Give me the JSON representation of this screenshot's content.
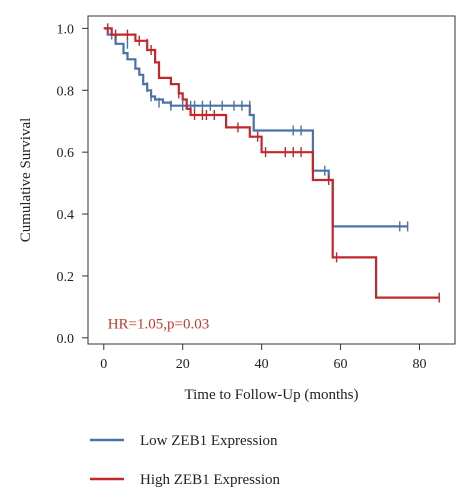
{
  "chart_data": {
    "type": "line",
    "subtype": "kaplan-meier step",
    "xlabel": "Time to Follow-Up (months)",
    "ylabel": "Cumulative Survival",
    "xlim": [
      -4,
      89
    ],
    "ylim": [
      -0.02,
      1.04
    ],
    "xticks": [
      0,
      20,
      40,
      60,
      80
    ],
    "yticks": [
      0.0,
      0.2,
      0.4,
      0.6,
      0.8,
      1.0
    ],
    "ytick_labels": [
      "0.0",
      "0.2",
      "0.4",
      "0.6",
      "0.8",
      "1.0"
    ],
    "grid": false,
    "legend_position": "below plot",
    "annotation": {
      "text": "HR=1.05,p=0.03",
      "x": 1,
      "y": 0.03,
      "color": "#c8382a"
    },
    "series": [
      {
        "name": "Low ZEB1 Expression",
        "color": "#4a72a8",
        "steps": [
          [
            0,
            1.0
          ],
          [
            1,
            0.98
          ],
          [
            3,
            0.95
          ],
          [
            5,
            0.92
          ],
          [
            6,
            0.9
          ],
          [
            8,
            0.87
          ],
          [
            9,
            0.85
          ],
          [
            10,
            0.82
          ],
          [
            11,
            0.8
          ],
          [
            12,
            0.78
          ],
          [
            13,
            0.77
          ],
          [
            15,
            0.76
          ],
          [
            17,
            0.75
          ],
          [
            37,
            0.72
          ],
          [
            38,
            0.67
          ],
          [
            53,
            0.54
          ],
          [
            57,
            0.51
          ],
          [
            58,
            0.36
          ],
          [
            77,
            0.36
          ]
        ],
        "censored": [
          [
            2,
            0.98
          ],
          [
            6,
            0.95
          ],
          [
            11,
            0.81
          ],
          [
            12,
            0.78
          ],
          [
            14,
            0.76
          ],
          [
            17,
            0.75
          ],
          [
            20,
            0.75
          ],
          [
            22,
            0.75
          ],
          [
            23,
            0.75
          ],
          [
            25,
            0.75
          ],
          [
            27,
            0.75
          ],
          [
            30,
            0.75
          ],
          [
            33,
            0.75
          ],
          [
            35,
            0.75
          ],
          [
            37,
            0.75
          ],
          [
            48,
            0.67
          ],
          [
            50,
            0.67
          ],
          [
            56,
            0.54
          ],
          [
            75,
            0.36
          ],
          [
            77,
            0.36
          ]
        ]
      },
      {
        "name": "High ZEB1 Expression",
        "color": "#c0282d",
        "steps": [
          [
            0,
            1.0
          ],
          [
            2,
            0.98
          ],
          [
            8,
            0.96
          ],
          [
            11,
            0.93
          ],
          [
            13,
            0.89
          ],
          [
            14,
            0.84
          ],
          [
            17,
            0.82
          ],
          [
            19,
            0.79
          ],
          [
            20,
            0.77
          ],
          [
            21,
            0.74
          ],
          [
            22,
            0.72
          ],
          [
            31,
            0.68
          ],
          [
            37,
            0.65
          ],
          [
            40,
            0.6
          ],
          [
            53,
            0.51
          ],
          [
            58,
            0.26
          ],
          [
            69,
            0.13
          ],
          [
            85,
            0.13
          ]
        ],
        "censored": [
          [
            1,
            1.0
          ],
          [
            3,
            0.98
          ],
          [
            6,
            0.98
          ],
          [
            9,
            0.96
          ],
          [
            11,
            0.95
          ],
          [
            12,
            0.93
          ],
          [
            19,
            0.79
          ],
          [
            23,
            0.72
          ],
          [
            25,
            0.72
          ],
          [
            26,
            0.72
          ],
          [
            28,
            0.72
          ],
          [
            34,
            0.68
          ],
          [
            39,
            0.65
          ],
          [
            41,
            0.6
          ],
          [
            46,
            0.6
          ],
          [
            48,
            0.6
          ],
          [
            50,
            0.6
          ],
          [
            57,
            0.51
          ],
          [
            59,
            0.26
          ],
          [
            85,
            0.13
          ]
        ]
      }
    ]
  }
}
